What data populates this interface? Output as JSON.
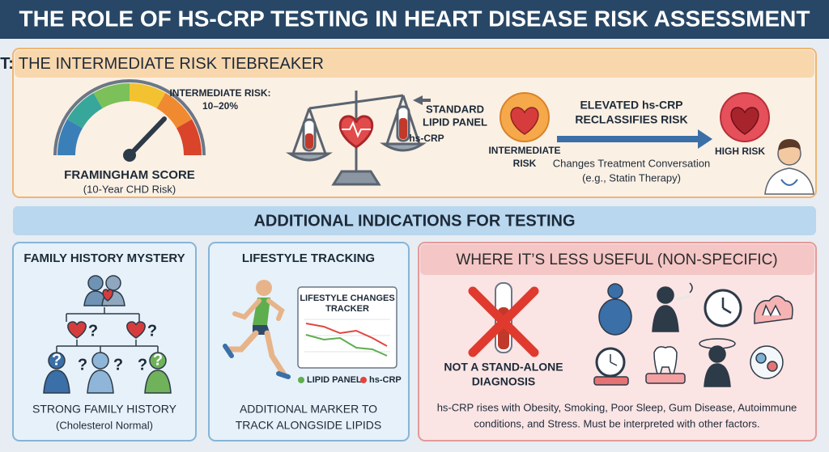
{
  "header": {
    "title": "THE ROLE OF HS-CRP TESTING IN HEART DISEASE RISK ASSESSMENT"
  },
  "primary": {
    "heading_bold": "PRIMARY BENEFIT:",
    "heading_rest": "THE INTERMEDIATE RISK TIEBREAKER",
    "gauge": {
      "risk_label": [
        "INTERMEDIATE RISK:",
        "10–20%"
      ],
      "name": "FRAMINGHAM SCORE",
      "subtitle": "(10-Year CHD Risk)"
    },
    "scale": {
      "lipid_label": [
        "STANDARD",
        "LIPID PANEL"
      ],
      "crp_label": "hs-CRP"
    },
    "reclassify": {
      "from": [
        "INTERMEDIATE",
        "RISK"
      ],
      "arrow_label": [
        "ELEVATED hs-CRP",
        "RECLASSIFIES RISK"
      ],
      "to": "HIGH RISK",
      "note": [
        "Changes Treatment Conversation",
        "(e.g., Statin Therapy)"
      ]
    }
  },
  "additional": {
    "heading": "ADDITIONAL INDICATIONS FOR TESTING",
    "family": {
      "title": "FAMILY HISTORY MYSTERY",
      "question_mark": "?",
      "caption": [
        "STRONG FAMILY HISTORY",
        "(Cholesterol Normal)"
      ]
    },
    "lifestyle": {
      "title": "LIFESTYLE TRACKING",
      "tracker_title": [
        "LIFESTYLE CHANGES",
        "TRACKER"
      ],
      "legend": [
        "LIPID PANEL",
        "hs-CRP"
      ],
      "caption": [
        "ADDITIONAL MARKER TO",
        "TRACK ALONGSIDE LIPIDS"
      ]
    },
    "less_useful": {
      "title": "WHERE IT’S LESS USEFUL (NON-SPECIFIC)",
      "diagnosis": [
        "NOT A STAND-ALONE",
        "DIAGNOSIS"
      ],
      "caption": [
        "hs-CRP rises with Obesity, Smoking, Poor Sleep, Gum Disease, Autoimmune",
        "conditions, and Stress. Must be interpreted with other factors."
      ]
    }
  }
}
